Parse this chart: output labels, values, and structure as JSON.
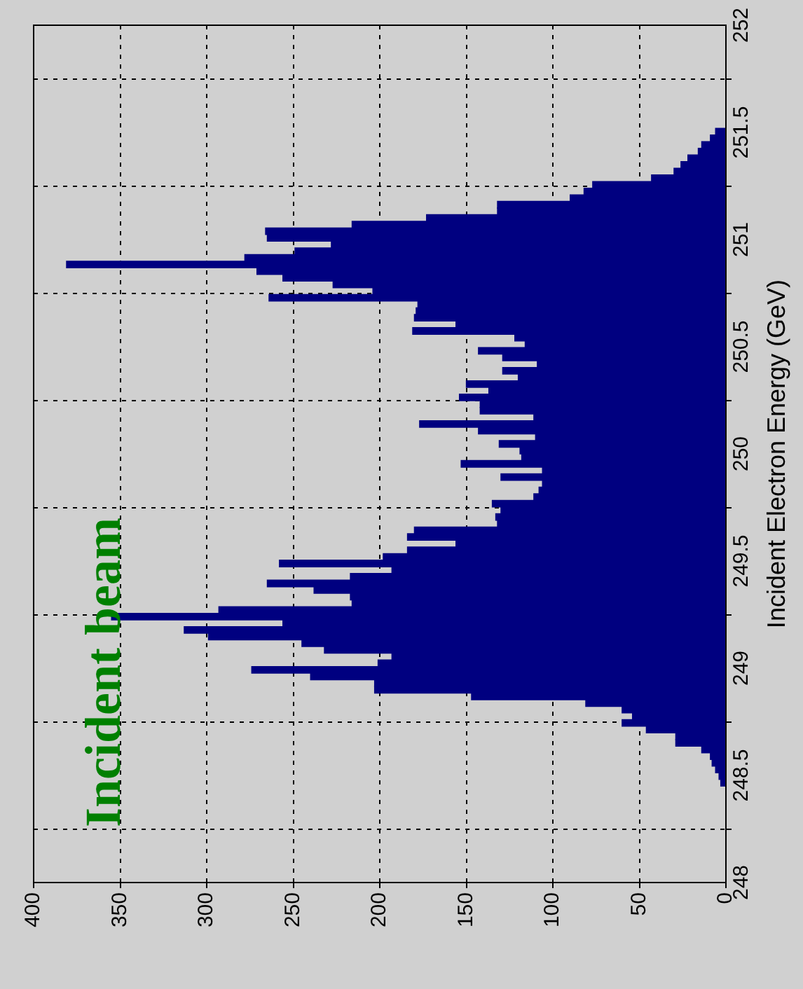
{
  "chart_data": {
    "type": "histogram",
    "orientation": "horizontal",
    "ylabel": "Incident Electron Energy (GeV)",
    "annotations": [
      "Incident beam"
    ],
    "color": "#000080",
    "bins": [
      248.45,
      248.481,
      248.512,
      248.543,
      248.574,
      248.605,
      248.636,
      248.667,
      248.698,
      248.729,
      248.76,
      248.791,
      248.822,
      248.853,
      248.884,
      248.915,
      248.946,
      248.977,
      249.008,
      249.039,
      249.07,
      249.101,
      249.132,
      249.163,
      249.194,
      249.225,
      249.256,
      249.287,
      249.318,
      249.349,
      249.38,
      249.411,
      249.442,
      249.473,
      249.504,
      249.535,
      249.566,
      249.597,
      249.628,
      249.659,
      249.69,
      249.721,
      249.752,
      249.783,
      249.814,
      249.845,
      249.876,
      249.907,
      249.938,
      249.969,
      250.0,
      250.031,
      250.062,
      250.093,
      250.124,
      250.155,
      250.186,
      250.217,
      250.248,
      250.279,
      250.31,
      250.341,
      250.372,
      250.403,
      250.434,
      250.465,
      250.496,
      250.527,
      250.558,
      250.589,
      250.62,
      250.651,
      250.682,
      250.713,
      250.744,
      250.775,
      250.806,
      250.837,
      250.868,
      250.899,
      250.93,
      250.961,
      250.992,
      251.023,
      251.054,
      251.085,
      251.116,
      251.147,
      251.178,
      251.209,
      251.24,
      251.271,
      251.302,
      251.333,
      251.364,
      251.395,
      251.426,
      251.457,
      251.488,
      251.519
    ],
    "values": [
      3,
      4,
      6,
      8,
      9,
      14,
      29,
      29,
      46,
      60,
      54,
      60,
      81,
      147,
      203,
      203,
      240,
      274,
      201,
      193,
      232,
      245,
      299,
      313,
      256,
      355,
      293,
      216,
      217,
      238,
      265,
      217,
      193,
      258,
      198,
      184,
      156,
      184,
      180,
      132,
      133,
      130,
      135,
      111,
      108,
      106,
      130,
      106,
      153,
      118,
      119,
      131,
      110,
      143,
      177,
      111,
      142,
      142,
      154,
      137,
      150,
      120,
      129,
      109,
      129,
      143,
      116,
      122,
      181,
      156,
      180,
      179,
      178,
      264,
      204,
      227,
      256,
      271,
      381,
      278,
      249,
      228,
      265,
      266,
      216,
      173,
      132,
      132,
      90,
      82,
      77,
      43,
      30,
      26,
      22,
      16,
      14,
      9,
      6
    ],
    "ylim": [
      248,
      252
    ],
    "yticks": [
      248,
      248.5,
      249,
      249.5,
      250,
      250.5,
      251,
      251.5,
      252
    ],
    "xlim": [
      400,
      0
    ],
    "xticks": [
      400,
      350,
      300,
      250,
      200,
      150,
      100,
      50,
      0
    ],
    "grid": true,
    "legend": false
  }
}
